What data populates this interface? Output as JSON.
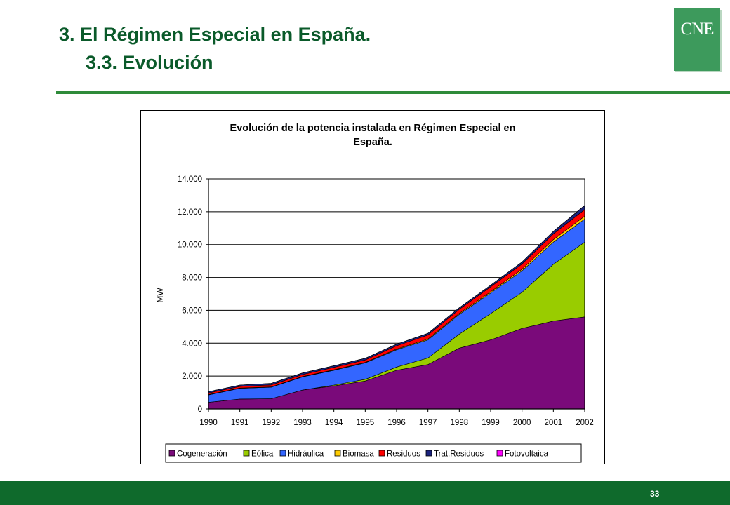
{
  "slide": {
    "title": "3. El Régimen Especial en España.",
    "subtitle": "3.3. Evolución",
    "logo_text": "CNE",
    "page_number": "33"
  },
  "colors": {
    "title": "#0a5a2a",
    "rule": "#2e8b3a",
    "footer": "#0f6a2c",
    "logo": "#3d9a5c"
  },
  "chart_data": {
    "type": "area",
    "stacked": true,
    "title_line1": "Evolución de la potencia instalada en Régimen Especial en",
    "title_line2": "España.",
    "xlabel": "",
    "ylabel": "MW",
    "ylim": [
      0,
      14000
    ],
    "yticks": [
      "0",
      "2.000",
      "4.000",
      "6.000",
      "8.000",
      "10.000",
      "12.000",
      "14.000"
    ],
    "ytick_values": [
      0,
      2000,
      4000,
      6000,
      8000,
      10000,
      12000,
      14000
    ],
    "grid": "horizontal",
    "legend_position": "bottom",
    "x": [
      "1990",
      "1991",
      "1992",
      "1993",
      "1994",
      "1995",
      "1996",
      "1997",
      "1998",
      "1999",
      "2000",
      "2001",
      "2002"
    ],
    "series": [
      {
        "name": "Cogeneración",
        "color": "#7a0a7a",
        "values": [
          400,
          600,
          620,
          1150,
          1400,
          1700,
          2350,
          2700,
          3700,
          4200,
          4900,
          5350,
          5600
        ]
      },
      {
        "name": "Eólica",
        "color": "#99cc00",
        "values": [
          0,
          0,
          0,
          0,
          50,
          100,
          200,
          400,
          850,
          1600,
          2200,
          3450,
          4550
        ]
      },
      {
        "name": "Hidráulica",
        "color": "#3366ff",
        "values": [
          450,
          650,
          700,
          800,
          900,
          1000,
          1050,
          1100,
          1200,
          1250,
          1300,
          1350,
          1400
        ]
      },
      {
        "name": "Biomasa",
        "color": "#ffcc00",
        "values": [
          20,
          20,
          20,
          20,
          30,
          30,
          40,
          50,
          60,
          80,
          100,
          150,
          180
        ]
      },
      {
        "name": "Residuos",
        "color": "#ff0000",
        "values": [
          100,
          100,
          120,
          120,
          150,
          150,
          200,
          250,
          250,
          300,
          320,
          350,
          400
        ]
      },
      {
        "name": "Trat.Residuos",
        "color": "#1a237e",
        "values": [
          80,
          80,
          100,
          100,
          100,
          100,
          100,
          100,
          100,
          100,
          120,
          150,
          250
        ]
      },
      {
        "name": "Fotovoltaica",
        "color": "#ff00ff",
        "values": [
          0,
          0,
          0,
          0,
          0,
          0,
          0,
          0,
          0,
          0,
          0,
          5,
          10
        ]
      }
    ]
  }
}
